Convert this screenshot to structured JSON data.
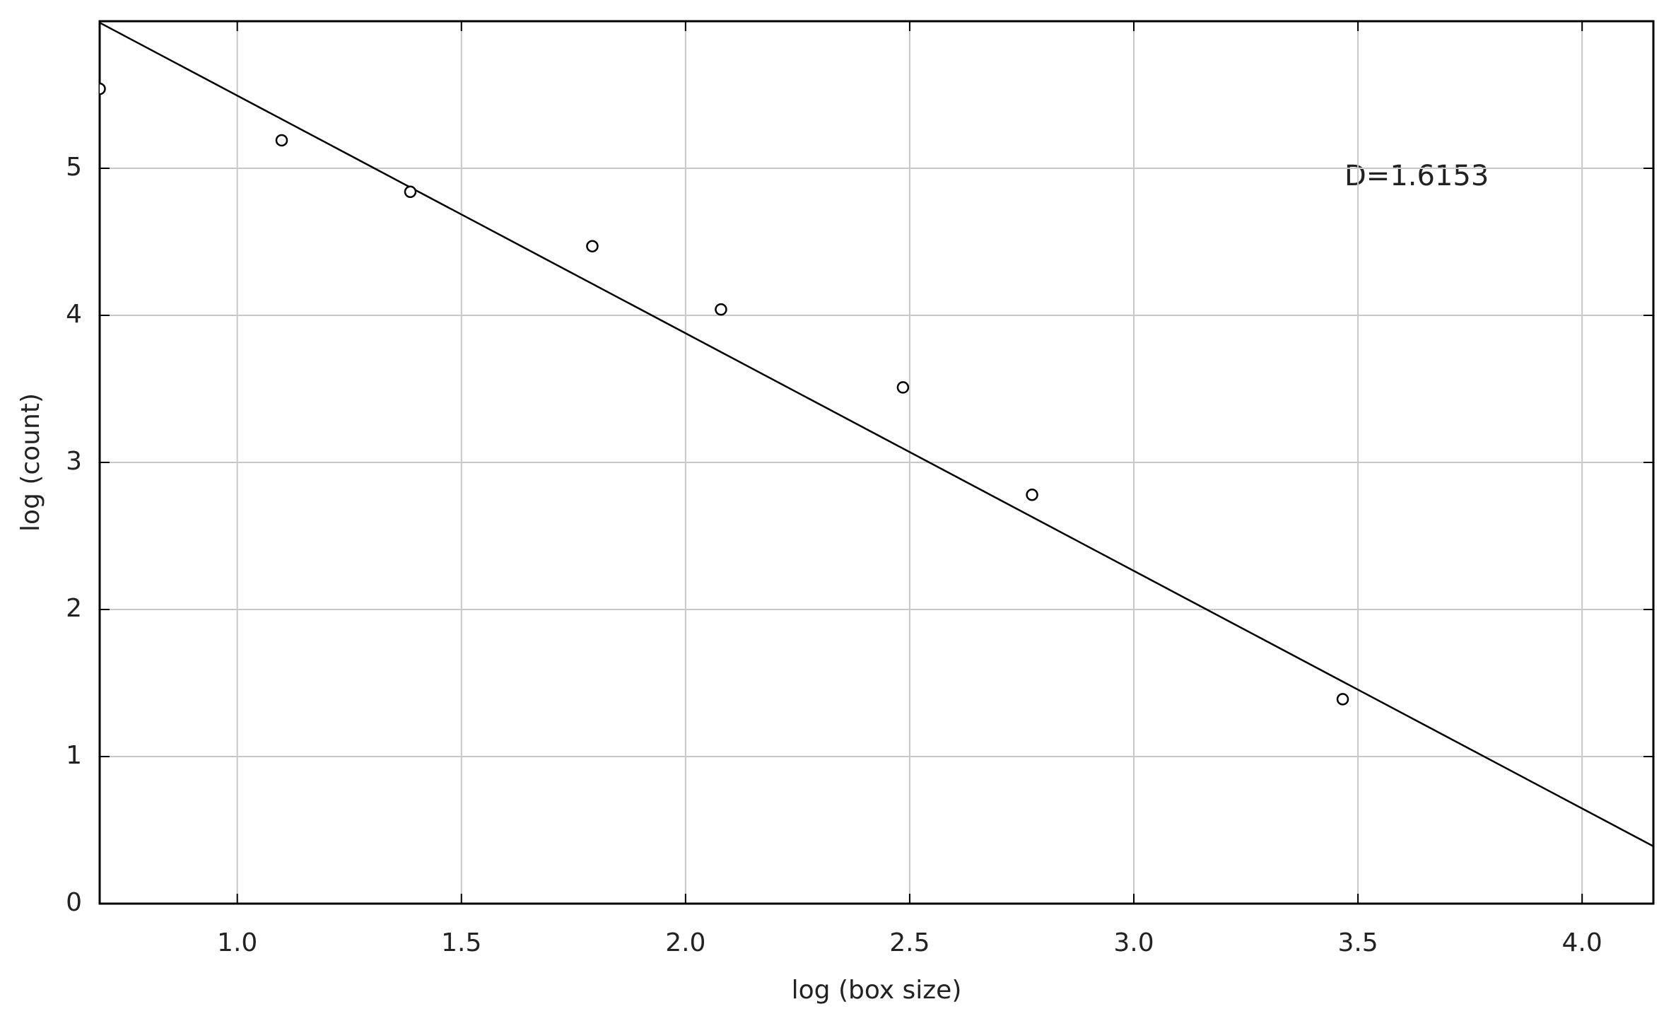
{
  "chart_data": {
    "type": "scatter",
    "x_label": "log (box size)",
    "y_label": "log (count)",
    "annotation": "D=1.6153",
    "series": [
      {
        "color": "#000000",
        "x": [
          0.693,
          1.099,
          1.386,
          1.792,
          2.079,
          2.485,
          2.773,
          3.466
        ],
        "values": [
          5.54,
          5.19,
          4.84,
          4.47,
          4.04,
          3.51,
          2.78,
          1.39
        ]
      }
    ],
    "fit_line": {
      "color": "#000000",
      "x": [
        0.693,
        4.159
      ],
      "values": [
        5.99,
        0.39
      ]
    },
    "xlim": [
      0.693,
      4.159
    ],
    "ylim": [
      0,
      6
    ],
    "xticks": [
      {
        "value": 1,
        "label": "1.0"
      },
      {
        "value": 1.5,
        "label": "1.5"
      },
      {
        "value": 2,
        "label": "2.0"
      },
      {
        "value": 2.5,
        "label": "2.5"
      },
      {
        "value": 3,
        "label": "3.0"
      },
      {
        "value": 3.5,
        "label": "3.5"
      },
      {
        "value": 4,
        "label": "4.0"
      }
    ],
    "yticks": [
      0,
      1,
      2,
      3,
      4,
      5
    ],
    "grid": true
  }
}
